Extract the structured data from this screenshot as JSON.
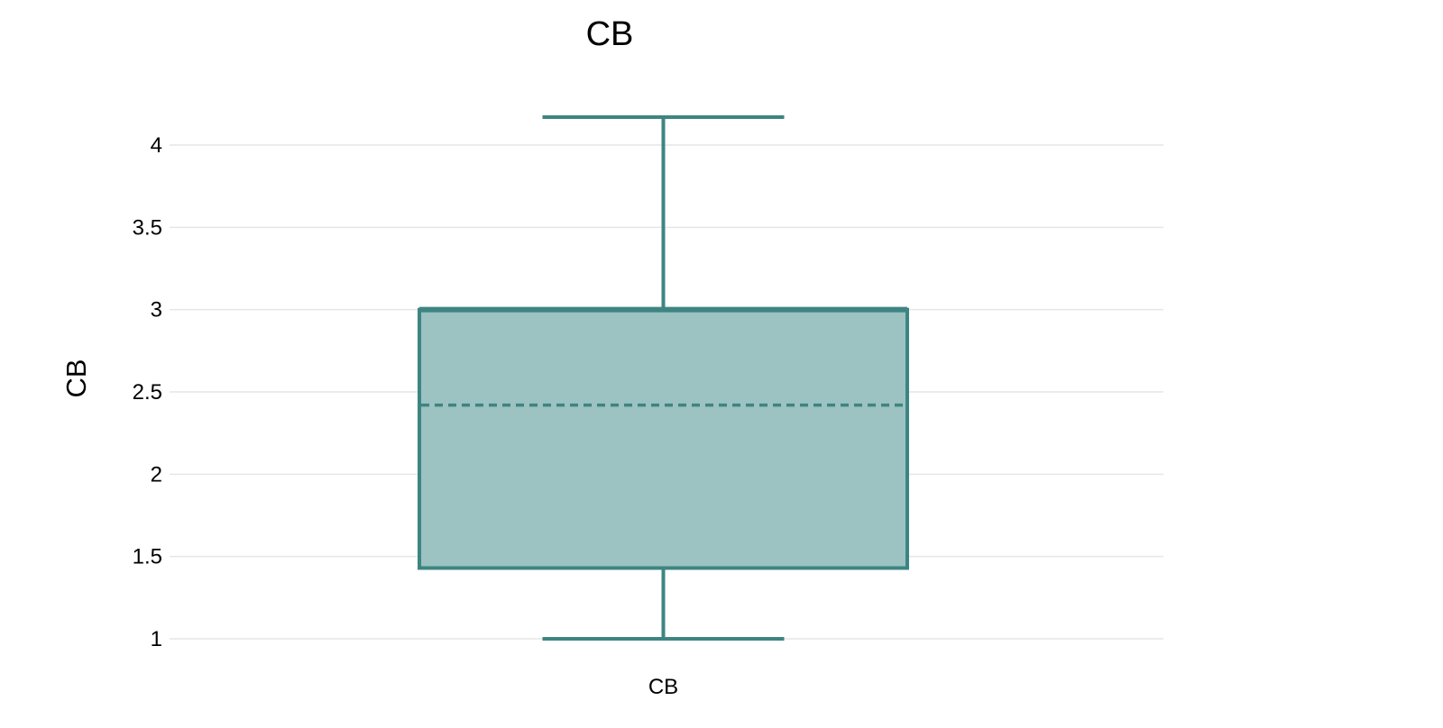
{
  "chart_data": {
    "type": "box",
    "title": "CB",
    "xlabel": "",
    "ylabel": "CB",
    "categories": [
      "CB"
    ],
    "ylim": [
      0.85,
      4.25
    ],
    "yticks": [
      1,
      1.5,
      2,
      2.5,
      3,
      3.5,
      4
    ],
    "ytick_labels": [
      "1",
      "1.5",
      "2",
      "2.5",
      "3",
      "3.5",
      "4"
    ],
    "grid": true,
    "series": [
      {
        "category": "CB",
        "min": 1.0,
        "q1": 1.43,
        "mean": 2.42,
        "q3": 3.0,
        "max": 4.17
      }
    ],
    "colors": {
      "box_stroke": "#3d8582",
      "box_fill": "#9cc2c1",
      "grid": "#e6e6e6"
    }
  }
}
